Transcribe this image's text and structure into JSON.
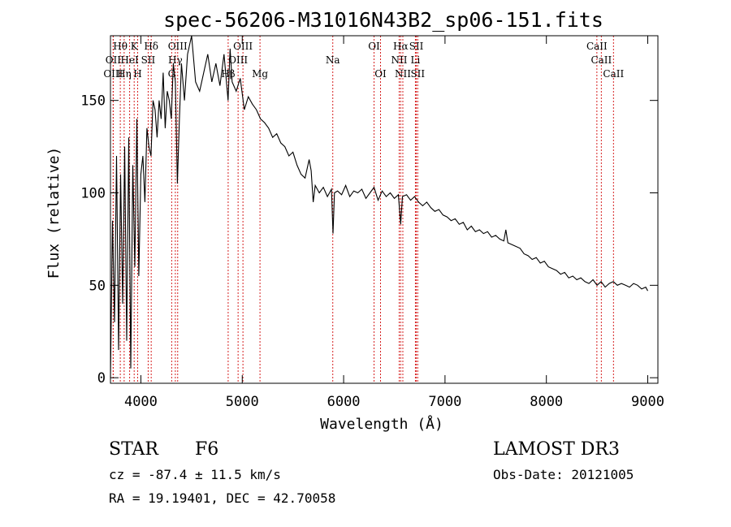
{
  "chart_data": {
    "type": "line",
    "title": "spec-56206-M31016N43B2_sp06-151.fits",
    "xlabel": "Wavelength (Å)",
    "ylabel": "Flux (relative)",
    "xlim": [
      3700,
      9100
    ],
    "ylim": [
      -3,
      185
    ],
    "xticks": [
      4000,
      5000,
      6000,
      7000,
      8000,
      9000
    ],
    "yticks": [
      0,
      50,
      100,
      150
    ],
    "series": [
      {
        "name": "spectrum",
        "x": [
          3700,
          3720,
          3740,
          3760,
          3780,
          3800,
          3820,
          3840,
          3860,
          3880,
          3900,
          3920,
          3940,
          3960,
          3980,
          4000,
          4020,
          4040,
          4060,
          4080,
          4100,
          4120,
          4140,
          4160,
          4180,
          4200,
          4220,
          4240,
          4260,
          4280,
          4300,
          4320,
          4340,
          4360,
          4380,
          4400,
          4430,
          4460,
          4500,
          4540,
          4580,
          4620,
          4660,
          4700,
          4740,
          4780,
          4820,
          4860,
          4880,
          4900,
          4940,
          4980,
          5020,
          5060,
          5100,
          5140,
          5180,
          5220,
          5260,
          5300,
          5340,
          5380,
          5420,
          5460,
          5500,
          5540,
          5580,
          5620,
          5660,
          5680,
          5700,
          5720,
          5760,
          5800,
          5840,
          5880,
          5895,
          5910,
          5940,
          5980,
          6020,
          6060,
          6100,
          6140,
          6180,
          6220,
          6260,
          6300,
          6340,
          6380,
          6420,
          6460,
          6500,
          6540,
          6563,
          6580,
          6620,
          6660,
          6700,
          6740,
          6780,
          6820,
          6860,
          6900,
          6940,
          6980,
          7020,
          7060,
          7100,
          7140,
          7180,
          7220,
          7260,
          7300,
          7340,
          7380,
          7420,
          7460,
          7500,
          7540,
          7580,
          7600,
          7620,
          7660,
          7700,
          7740,
          7780,
          7820,
          7860,
          7900,
          7940,
          7980,
          8020,
          8060,
          8100,
          8140,
          8180,
          8220,
          8260,
          8300,
          8340,
          8380,
          8420,
          8460,
          8500,
          8540,
          8580,
          8620,
          8660,
          8700,
          8740,
          8780,
          8820,
          8860,
          8900,
          8940,
          8980,
          9000
        ],
        "y": [
          0,
          85,
          30,
          120,
          15,
          110,
          40,
          125,
          20,
          130,
          5,
          115,
          60,
          140,
          55,
          110,
          120,
          95,
          135,
          125,
          120,
          150,
          145,
          130,
          150,
          140,
          165,
          135,
          155,
          150,
          140,
          170,
          160,
          105,
          140,
          170,
          150,
          175,
          190,
          160,
          155,
          165,
          175,
          160,
          170,
          158,
          175,
          150,
          178,
          160,
          155,
          162,
          145,
          152,
          148,
          145,
          140,
          138,
          135,
          130,
          132,
          127,
          125,
          120,
          122,
          115,
          110,
          108,
          118,
          112,
          95,
          104,
          100,
          103,
          98,
          102,
          78,
          100,
          101,
          99,
          104,
          98,
          101,
          100,
          102,
          97,
          100,
          103,
          96,
          101,
          98,
          100,
          97,
          99,
          83,
          98,
          99,
          96,
          98,
          95,
          93,
          95,
          92,
          90,
          91,
          88,
          87,
          85,
          86,
          83,
          84,
          80,
          82,
          79,
          80,
          78,
          79,
          76,
          77,
          75,
          74,
          80,
          73,
          72,
          71,
          70,
          67,
          66,
          64,
          65,
          62,
          63,
          60,
          59,
          58,
          56,
          57,
          54,
          55,
          53,
          54,
          52,
          51,
          53,
          50,
          52,
          49,
          51,
          52,
          50,
          51,
          50,
          49,
          51,
          50,
          48,
          49,
          47
        ]
      }
    ],
    "lines": [
      {
        "label": "Hθ",
        "x": 3797,
        "row": 0
      },
      {
        "label": "K",
        "x": 3934,
        "row": 0
      },
      {
        "label": "Hδ",
        "x": 4102,
        "row": 0
      },
      {
        "label": "OIII",
        "x": 4363,
        "row": 0
      },
      {
        "label": "OIII",
        "x": 5007,
        "row": 0
      },
      {
        "label": "OI",
        "x": 6300,
        "row": 0
      },
      {
        "label": "Hα",
        "x": 6563,
        "row": 0
      },
      {
        "label": "SII",
        "x": 6717,
        "row": 0
      },
      {
        "label": "CaII",
        "x": 8498,
        "row": 0
      },
      {
        "label": "OII",
        "x": 3727,
        "row": 1
      },
      {
        "label": "HeI",
        "x": 3889,
        "row": 1
      },
      {
        "label": "SII",
        "x": 4072,
        "row": 1
      },
      {
        "label": "Hγ",
        "x": 4340,
        "row": 1
      },
      {
        "label": "OIII",
        "x": 4959,
        "row": 1
      },
      {
        "label": "Na",
        "x": 5893,
        "row": 1
      },
      {
        "label": "NII",
        "x": 6548,
        "row": 1
      },
      {
        "label": "Li",
        "x": 6708,
        "row": 1
      },
      {
        "label": "CaII",
        "x": 8542,
        "row": 1
      },
      {
        "label": "OIII",
        "x": 3727,
        "row": 2
      },
      {
        "label": "Hη",
        "x": 3835,
        "row": 2
      },
      {
        "label": "H",
        "x": 3968,
        "row": 2
      },
      {
        "label": "G",
        "x": 4304,
        "row": 2
      },
      {
        "label": "Hβ",
        "x": 4861,
        "row": 2
      },
      {
        "label": "Mg",
        "x": 5175,
        "row": 2
      },
      {
        "label": "OI",
        "x": 6364,
        "row": 2
      },
      {
        "label": "NII",
        "x": 6584,
        "row": 2
      },
      {
        "label": "SII",
        "x": 6731,
        "row": 2
      },
      {
        "label": "CaII",
        "x": 8662,
        "row": 2
      }
    ]
  },
  "info": {
    "object_class": "STAR",
    "subclass": "F6",
    "survey": "LAMOST DR3",
    "cz": "cz = -87.4 ± 11.5 km/s",
    "obs_date": "Obs-Date: 20121005",
    "coords": "RA =  19.19401, DEC =  42.70058"
  },
  "colors": {
    "line": "#000000",
    "marker": "#d62020",
    "background": "#ffffff"
  }
}
